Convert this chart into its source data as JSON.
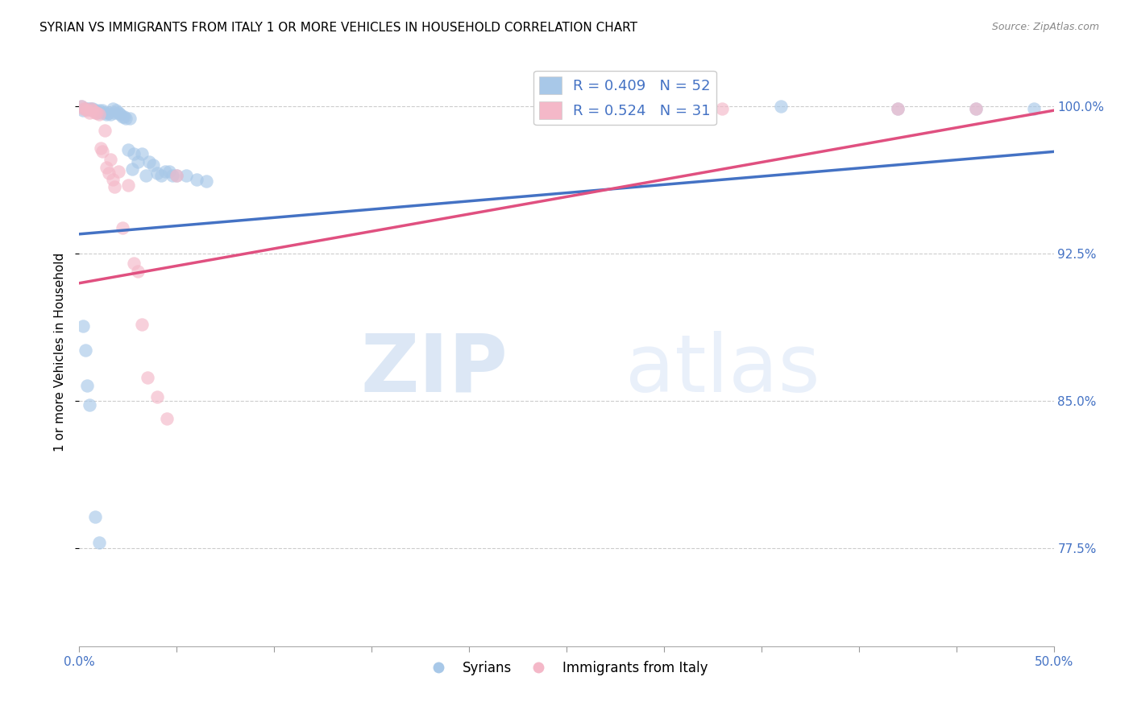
{
  "title": "SYRIAN VS IMMIGRANTS FROM ITALY 1 OR MORE VEHICLES IN HOUSEHOLD CORRELATION CHART",
  "source": "Source: ZipAtlas.com",
  "ylabel": "1 or more Vehicles in Household",
  "legend_blue_label": "R = 0.409   N = 52",
  "legend_pink_label": "R = 0.524   N = 31",
  "syrians_label": "Syrians",
  "italy_label": "Immigrants from Italy",
  "blue_color": "#a8c8e8",
  "pink_color": "#f4b8c8",
  "blue_line_color": "#4472c4",
  "pink_line_color": "#e05080",
  "xmin": 0.0,
  "xmax": 0.5,
  "ymin": 0.725,
  "ymax": 1.025,
  "blue_scatter": [
    [
      0.001,
      1.0
    ],
    [
      0.002,
      0.998
    ],
    [
      0.003,
      0.999
    ],
    [
      0.004,
      0.999
    ],
    [
      0.005,
      0.999
    ],
    [
      0.006,
      0.999
    ],
    [
      0.007,
      0.999
    ],
    [
      0.008,
      0.998
    ],
    [
      0.009,
      0.997
    ],
    [
      0.01,
      0.998
    ],
    [
      0.011,
      0.997
    ],
    [
      0.012,
      0.998
    ],
    [
      0.013,
      0.997
    ],
    [
      0.014,
      0.996
    ],
    [
      0.015,
      0.997
    ],
    [
      0.016,
      0.996
    ],
    [
      0.017,
      0.999
    ],
    [
      0.018,
      0.997
    ],
    [
      0.019,
      0.998
    ],
    [
      0.02,
      0.997
    ],
    [
      0.021,
      0.996
    ],
    [
      0.022,
      0.995
    ],
    [
      0.023,
      0.995
    ],
    [
      0.024,
      0.994
    ],
    [
      0.025,
      0.978
    ],
    [
      0.026,
      0.994
    ],
    [
      0.027,
      0.968
    ],
    [
      0.028,
      0.976
    ],
    [
      0.03,
      0.972
    ],
    [
      0.032,
      0.976
    ],
    [
      0.034,
      0.965
    ],
    [
      0.036,
      0.972
    ],
    [
      0.038,
      0.97
    ],
    [
      0.04,
      0.966
    ],
    [
      0.042,
      0.965
    ],
    [
      0.044,
      0.967
    ],
    [
      0.046,
      0.967
    ],
    [
      0.048,
      0.965
    ],
    [
      0.05,
      0.965
    ],
    [
      0.055,
      0.965
    ],
    [
      0.06,
      0.963
    ],
    [
      0.065,
      0.962
    ],
    [
      0.002,
      0.888
    ],
    [
      0.003,
      0.876
    ],
    [
      0.004,
      0.858
    ],
    [
      0.005,
      0.848
    ],
    [
      0.008,
      0.791
    ],
    [
      0.01,
      0.778
    ],
    [
      0.36,
      1.0
    ],
    [
      0.42,
      0.999
    ],
    [
      0.46,
      0.999
    ],
    [
      0.49,
      0.999
    ]
  ],
  "italy_scatter": [
    [
      0.001,
      1.0
    ],
    [
      0.002,
      0.999
    ],
    [
      0.003,
      0.999
    ],
    [
      0.004,
      0.998
    ],
    [
      0.005,
      0.997
    ],
    [
      0.006,
      0.999
    ],
    [
      0.007,
      0.998
    ],
    [
      0.008,
      0.997
    ],
    [
      0.009,
      0.997
    ],
    [
      0.01,
      0.996
    ],
    [
      0.011,
      0.979
    ],
    [
      0.012,
      0.977
    ],
    [
      0.013,
      0.988
    ],
    [
      0.014,
      0.969
    ],
    [
      0.015,
      0.966
    ],
    [
      0.016,
      0.973
    ],
    [
      0.017,
      0.963
    ],
    [
      0.018,
      0.959
    ],
    [
      0.02,
      0.967
    ],
    [
      0.022,
      0.938
    ],
    [
      0.025,
      0.96
    ],
    [
      0.028,
      0.92
    ],
    [
      0.03,
      0.916
    ],
    [
      0.032,
      0.889
    ],
    [
      0.035,
      0.862
    ],
    [
      0.04,
      0.852
    ],
    [
      0.045,
      0.841
    ],
    [
      0.05,
      0.965
    ],
    [
      0.33,
      0.999
    ],
    [
      0.42,
      0.999
    ],
    [
      0.46,
      0.999
    ]
  ],
  "blue_trend_x": [
    0.0,
    0.5
  ],
  "blue_trend_y": [
    0.935,
    0.977
  ],
  "pink_trend_x": [
    0.0,
    0.5
  ],
  "pink_trend_y": [
    0.91,
    0.998
  ],
  "ytick_vals": [
    0.775,
    0.85,
    0.925,
    1.0
  ],
  "ytick_labels": [
    "77.5%",
    "85.0%",
    "92.5%",
    "100.0%"
  ],
  "watermark_zip": "ZIP",
  "watermark_atlas": "atlas",
  "grid_color": "#cccccc",
  "background_color": "#ffffff"
}
